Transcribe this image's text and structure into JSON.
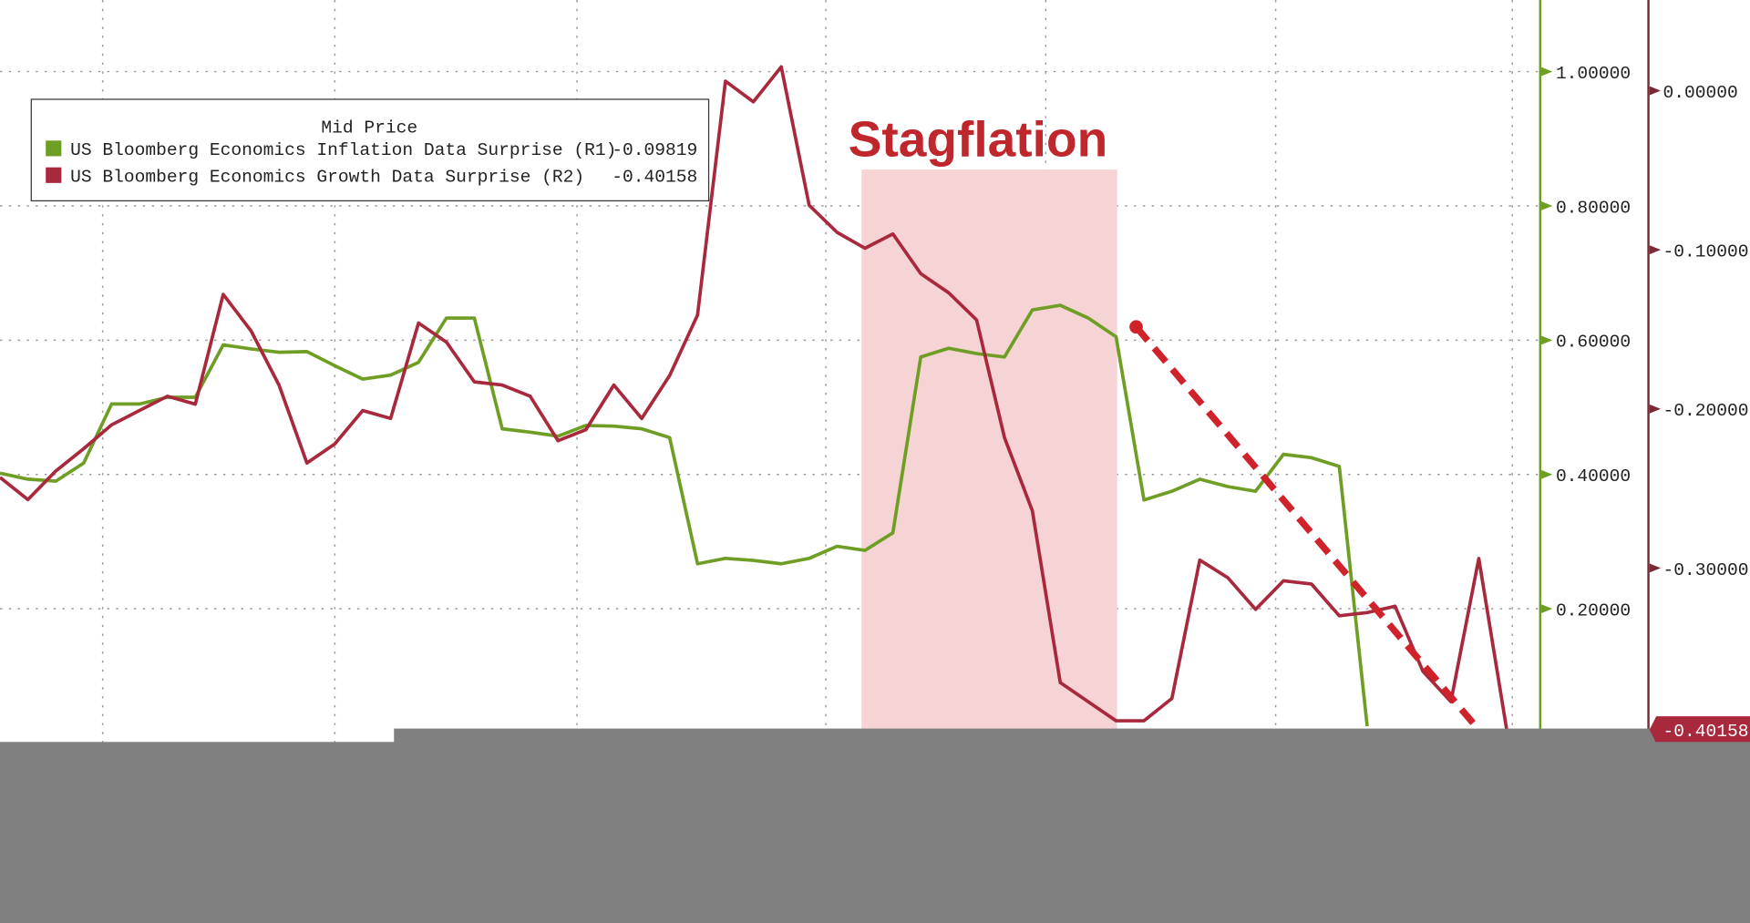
{
  "chart_data": {
    "type": "line",
    "annotation": "Stagflation",
    "legend_title": "Mid Price",
    "series": [
      {
        "name": "US Bloomberg Economics Inflation Data Surprise (R1)",
        "color": "#6e9e24",
        "legend_value": -0.09819,
        "values": [
          0.402,
          0.393,
          0.39,
          0.417,
          0.505,
          0.505,
          0.515,
          0.515,
          0.593,
          0.587,
          0.582,
          0.583,
          0.562,
          0.542,
          0.548,
          0.567,
          0.633,
          0.633,
          0.468,
          0.463,
          0.457,
          0.473,
          0.472,
          0.468,
          0.455,
          0.267,
          0.275,
          0.272,
          0.267,
          0.275,
          0.293,
          0.287,
          0.313,
          0.575,
          0.588,
          0.58,
          0.575,
          0.645,
          0.652,
          0.633,
          0.605,
          0.362,
          0.375,
          0.393,
          0.382,
          0.375,
          0.43,
          0.425,
          0.412,
          0.025,
          null,
          null,
          null,
          null,
          null
        ]
      },
      {
        "name": "US Bloomberg Economics Growth Data Surprise (R2)",
        "color": "#a8283c",
        "axis": "y2",
        "legend_value": -0.40158,
        "values": [
          -0.243,
          -0.257,
          -0.239,
          -0.225,
          -0.21,
          -0.201,
          -0.192,
          -0.197,
          -0.128,
          -0.151,
          -0.185,
          -0.234,
          -0.222,
          -0.201,
          -0.206,
          -0.146,
          -0.158,
          -0.183,
          -0.185,
          -0.192,
          -0.22,
          -0.213,
          -0.185,
          -0.206,
          -0.179,
          -0.141,
          0.006,
          -0.007,
          0.015,
          -0.072,
          -0.089,
          -0.099,
          -0.09,
          -0.115,
          -0.127,
          -0.144,
          -0.218,
          -0.264,
          -0.372,
          -0.384,
          -0.396,
          -0.396,
          -0.382,
          -0.295,
          -0.306,
          -0.326,
          -0.308,
          -0.31,
          -0.33,
          -0.328,
          -0.324,
          -0.365,
          -0.384,
          -0.294,
          -0.40158
        ]
      }
    ],
    "ylim": [
      0,
      1.09
    ],
    "yticks": [
      {
        "value": 0.2,
        "label": "0.20000"
      },
      {
        "value": 0.4,
        "label": "0.40000"
      },
      {
        "value": 0.6,
        "label": "0.60000"
      },
      {
        "value": 0.8,
        "label": "0.80000"
      },
      {
        "value": 1.0,
        "label": "1.00000"
      }
    ],
    "y2lim": [
      -0.41,
      0.05
    ],
    "y2ticks": [
      {
        "value": -0.3,
        "label": "-0.30000"
      },
      {
        "value": -0.2,
        "label": "-0.20000"
      },
      {
        "value": -0.1,
        "label": "-0.10000"
      },
      {
        "value": 0,
        "label": "0.00000"
      }
    ],
    "grid": true
  }
}
